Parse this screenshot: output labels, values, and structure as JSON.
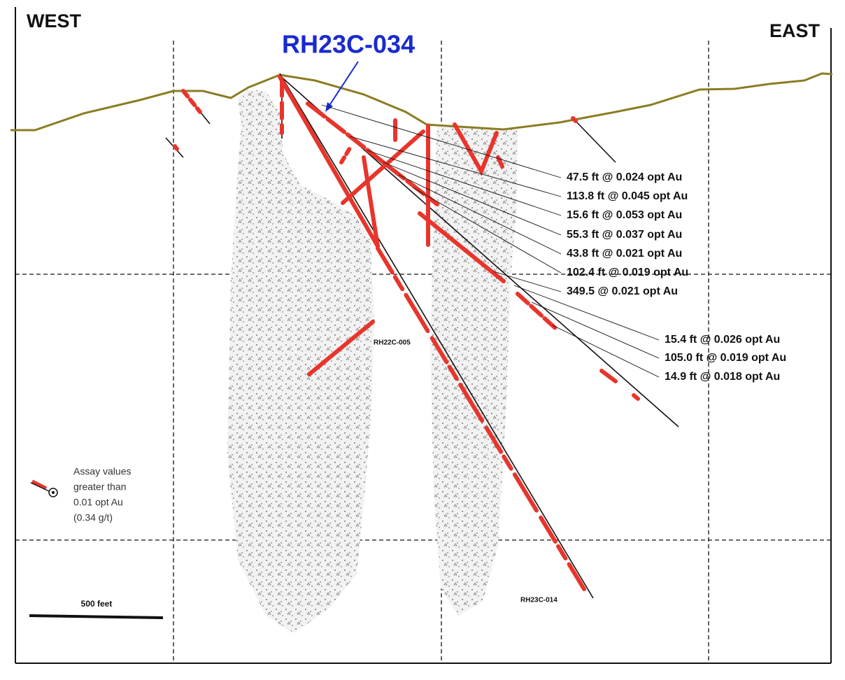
{
  "header": {
    "west": "WEST",
    "east": "EAST"
  },
  "callout": "RH23C-034",
  "intercepts": [
    "47.5 ft @ 0.024 opt Au",
    "113.8 ft @ 0.045 opt Au",
    "15.6 ft @ 0.053 opt Au",
    "55.3 ft @ 0.037 opt Au",
    "43.8 ft @ 0.021 opt Au",
    "102.4 ft @ 0.019 opt Au",
    "349.5 @ 0.021 opt Au",
    "15.4 ft @ 0.026 opt Au",
    "105.0 ft @ 0.019 opt Au",
    "14.9 ft @ 0.018 opt Au"
  ],
  "hole_labels": [
    "RH22C-005",
    "RH23C-014"
  ],
  "legend": {
    "lines": [
      "Assay values",
      "greater than",
      "0.01 opt Au",
      "(0.34 g/t)"
    ]
  },
  "scale_bar": "500 feet"
}
